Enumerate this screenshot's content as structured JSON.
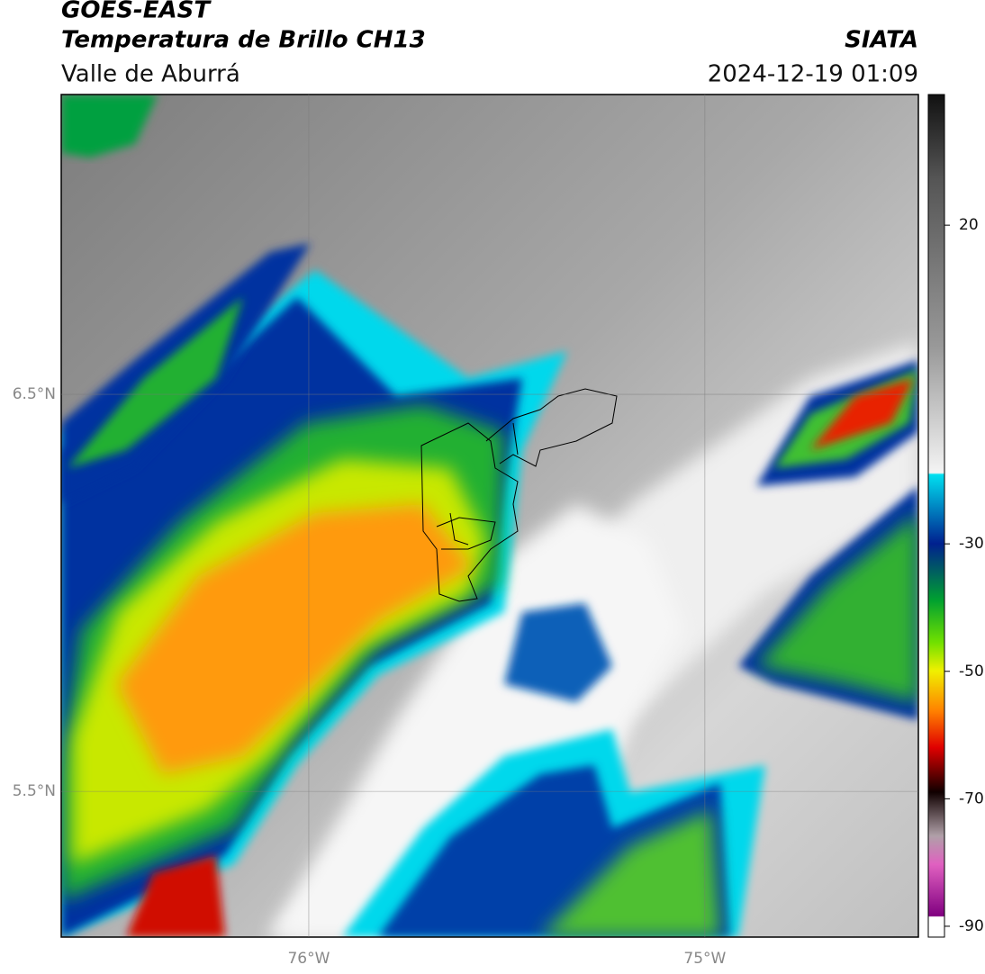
{
  "header": {
    "satellite": "GOES-EAST",
    "product": "Temperatura de Brillo CH13",
    "source": "SIATA",
    "region": "Valle de Aburrá",
    "datetime": "2024-12-19 01:09"
  },
  "map": {
    "xlim": [
      -76.625,
      -74.461
    ],
    "ylim": [
      5.133,
      7.255
    ],
    "xticks": [
      {
        "value": -76,
        "label": "76°W"
      },
      {
        "value": -75,
        "label": "75°W"
      }
    ],
    "yticks": [
      {
        "value": 6.5,
        "label": "6.5°N"
      },
      {
        "value": 5.5,
        "label": "5.5°N"
      }
    ],
    "grid": true
  },
  "colorbar": {
    "lim": [
      -91.7,
      40.5
    ],
    "ticks": [
      20,
      -30,
      -50,
      -70,
      -90
    ]
  }
}
